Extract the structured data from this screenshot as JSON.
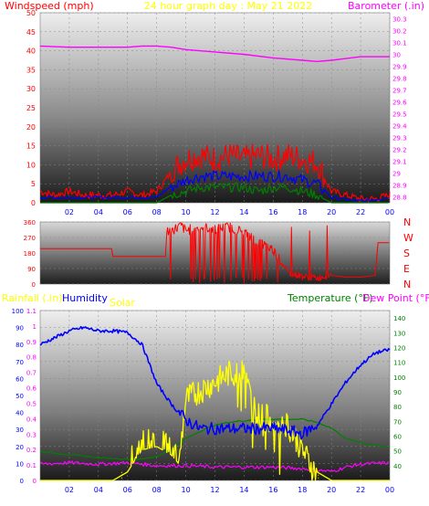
{
  "header": {
    "left_label": "Windspeed (mph)",
    "center_label": "24 hour graph day : May 21 2022",
    "right_label": "Barometer (.in)"
  },
  "colors": {
    "windspeed_label": "#ff0000",
    "title": "#ffff00",
    "barometer": "#ff00ff",
    "gust": "#ff0000",
    "average": "#0000ff",
    "low": "#008000",
    "direction": "#ff0000",
    "humidity": "#0000ff",
    "solar": "#ffff00",
    "temperature": "#008000",
    "dewpoint": "#ff00ff",
    "rainfall": "#ffff00",
    "bottom_labels": "#008000"
  },
  "hour_ticks": [
    "02",
    "04",
    "06",
    "08",
    "10",
    "12",
    "14",
    "16",
    "18",
    "20",
    "22",
    "00"
  ],
  "direction_labels": [
    "N",
    "W",
    "S",
    "E",
    "N"
  ],
  "chart_data": [
    {
      "type": "line",
      "name": "wind-and-barometer",
      "y_left_ticks": [
        "0",
        "5",
        "10",
        "15",
        "20",
        "25",
        "30",
        "35",
        "40",
        "45",
        "50"
      ],
      "y_left_range": [
        0,
        50
      ],
      "y_right_ticks": [
        "28.8",
        "28.9",
        "29",
        "29.1",
        "29.2",
        "29.3",
        "29.4",
        "29.5",
        "29.6",
        "29.7",
        "29.8",
        "29.9",
        "30",
        "30.1",
        "30.2",
        "30.3"
      ],
      "y_right_range": [
        28.75,
        30.35
      ],
      "x_range_hours": [
        0,
        24
      ],
      "series": [
        {
          "role": "barometer",
          "axis": "right",
          "x": [
            0,
            2,
            4,
            6,
            7,
            8,
            9,
            10,
            12,
            14,
            16,
            18,
            19,
            20,
            22,
            23,
            24
          ],
          "y": [
            30.07,
            30.06,
            30.06,
            30.06,
            30.07,
            30.07,
            30.06,
            30.04,
            30.02,
            30.0,
            29.97,
            29.95,
            29.94,
            29.95,
            29.98,
            29.98,
            29.98
          ]
        },
        {
          "role": "gust",
          "axis": "left",
          "x": [
            0,
            1,
            2,
            3,
            4,
            5,
            6,
            7,
            8,
            9,
            10,
            11,
            12,
            13,
            14,
            15,
            16,
            17,
            18,
            19,
            20,
            21,
            22,
            23,
            24
          ],
          "y": [
            3,
            2,
            3,
            2,
            2,
            2,
            3,
            2,
            3,
            8,
            11,
            12,
            11,
            12,
            11,
            12,
            11,
            12,
            11,
            10,
            3,
            2,
            1,
            1,
            2
          ]
        },
        {
          "role": "average",
          "axis": "left",
          "x": [
            0,
            2,
            4,
            6,
            8,
            9,
            10,
            11,
            12,
            13,
            14,
            15,
            16,
            17,
            18,
            19,
            20,
            22,
            24
          ],
          "y": [
            1,
            1,
            1,
            1,
            1,
            4,
            6,
            7,
            7,
            7,
            7,
            7,
            7,
            7,
            6,
            5,
            1,
            0,
            1
          ]
        },
        {
          "role": "low",
          "axis": "left",
          "x": [
            0,
            2,
            4,
            6,
            8,
            9,
            10,
            11,
            12,
            13,
            14,
            15,
            16,
            17,
            18,
            19,
            20,
            22,
            24
          ],
          "y": [
            0,
            0,
            0,
            0,
            0,
            2,
            3,
            4,
            4,
            4,
            4,
            3,
            4,
            4,
            3,
            2,
            0,
            0,
            0
          ]
        }
      ]
    },
    {
      "type": "line",
      "name": "wind-direction",
      "y_ticks": [
        "0",
        "90",
        "180",
        "270",
        "360"
      ],
      "y_range": [
        0,
        360
      ],
      "x_range_hours": [
        0,
        24
      ],
      "series": [
        {
          "role": "direction",
          "x": [
            0,
            4.9,
            5,
            8.6,
            8.7,
            9.5,
            9.6,
            10,
            11,
            12,
            13,
            14,
            15,
            16,
            17,
            18,
            19,
            20,
            21,
            22,
            23,
            23.2,
            24
          ],
          "y": [
            205,
            205,
            160,
            160,
            300,
            330,
            345,
            310,
            330,
            320,
            330,
            300,
            240,
            200,
            60,
            40,
            30,
            50,
            40,
            40,
            50,
            240,
            240
          ]
        }
      ]
    },
    {
      "type": "line",
      "name": "humidity-solar-temperature",
      "y_left_rain_ticks": [
        "0",
        "0.1",
        "0.2",
        "0.3",
        "0.4",
        "0.5",
        "0.6",
        "0.7",
        "0.8",
        "0.9",
        "1",
        "1.1"
      ],
      "y_left_humidity_ticks": [
        "0",
        "10",
        "20",
        "30",
        "40",
        "50",
        "60",
        "70",
        "80",
        "90",
        "100"
      ],
      "y_right_ticks": [
        "40",
        "50",
        "60",
        "70",
        "80",
        "90",
        "100",
        "110",
        "120",
        "130",
        "140"
      ],
      "y_humidity_range": [
        0,
        100
      ],
      "y_temp_range": [
        30,
        145
      ],
      "x_range_hours": [
        0,
        24
      ],
      "series": [
        {
          "role": "humidity",
          "x": [
            0,
            1,
            2,
            3,
            4,
            5,
            6,
            7,
            8,
            9,
            10,
            11,
            12,
            13,
            14,
            15,
            16,
            17,
            18,
            19,
            20,
            21,
            22,
            23,
            24
          ],
          "y": [
            80,
            84,
            88,
            90,
            88,
            88,
            87,
            80,
            57,
            45,
            35,
            30,
            30,
            30,
            30,
            30,
            30,
            29,
            27,
            32,
            45,
            58,
            68,
            75,
            77
          ]
        },
        {
          "role": "solar",
          "x": [
            0,
            5,
            6,
            6.5,
            7,
            8,
            9,
            9.5,
            10,
            11,
            12,
            13,
            14,
            14.5,
            15,
            16,
            17,
            18,
            19,
            20,
            24
          ],
          "y": [
            0,
            0,
            5,
            12,
            18,
            20,
            15,
            10,
            50,
            55,
            60,
            65,
            65,
            50,
            40,
            38,
            35,
            20,
            5,
            0,
            0
          ]
        },
        {
          "role": "temperature",
          "x": [
            0,
            2,
            4,
            6,
            7,
            8,
            9,
            10,
            11,
            12,
            13,
            14,
            15,
            16,
            17,
            18,
            19,
            20,
            21,
            22,
            24
          ],
          "y": [
            49,
            47,
            45,
            44,
            44,
            46,
            50,
            58,
            63,
            67,
            69,
            70,
            71,
            71,
            71,
            71,
            69,
            65,
            58,
            55,
            52
          ]
        },
        {
          "role": "dewpoint",
          "x": [
            0,
            2,
            4,
            6,
            8,
            10,
            12,
            14,
            16,
            18,
            19,
            20,
            21,
            22,
            24
          ],
          "y": [
            41,
            42,
            41,
            42,
            40,
            40,
            39,
            39,
            39,
            38,
            37,
            36,
            39,
            41,
            42
          ]
        }
      ]
    }
  ],
  "panel3_labels": {
    "rain": "Rainfall (.in)",
    "humidity": "Humidity",
    "solar": "Solar",
    "temp": "Temperature (°F)",
    "dew": "Dew Point (°F)"
  }
}
